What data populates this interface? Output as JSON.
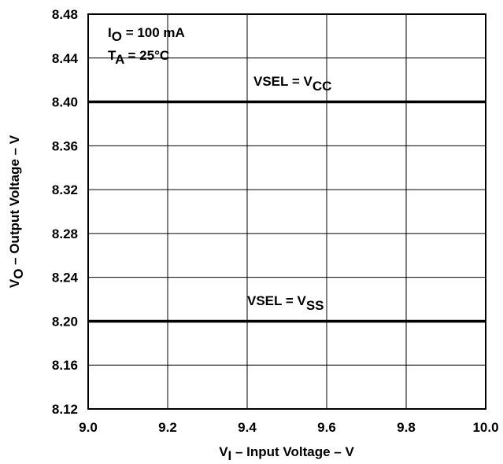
{
  "chart_data": {
    "type": "line",
    "xlabel": {
      "main": "V",
      "sub": "I",
      "rest": " – Input Voltage – V"
    },
    "ylabel": {
      "main": "V",
      "sub": "O",
      "rest": " – Output Voltage – V"
    },
    "xlim": [
      9.0,
      10.0
    ],
    "ylim": [
      8.12,
      8.48
    ],
    "x_ticks": [
      "9.0",
      "9.2",
      "9.4",
      "9.6",
      "9.8",
      "10.0"
    ],
    "y_ticks": [
      "8.12",
      "8.16",
      "8.20",
      "8.24",
      "8.28",
      "8.32",
      "8.36",
      "8.40",
      "8.44",
      "8.48"
    ],
    "grid": true,
    "conditions": [
      {
        "main": "I",
        "sub": "O",
        "rest": " = 100 mA"
      },
      {
        "main": "T",
        "sub": "A",
        "rest": " = 25°C"
      }
    ],
    "series": [
      {
        "label": {
          "main": "VSEL = V",
          "sub": "CC"
        },
        "x": [
          9.0,
          10.0
        ],
        "y": [
          8.4,
          8.4
        ],
        "color": "#000000"
      },
      {
        "label": {
          "main": "VSEL = V",
          "sub": "SS"
        },
        "x": [
          9.0,
          10.0
        ],
        "y": [
          8.2,
          8.2
        ],
        "color": "#000000"
      }
    ]
  }
}
